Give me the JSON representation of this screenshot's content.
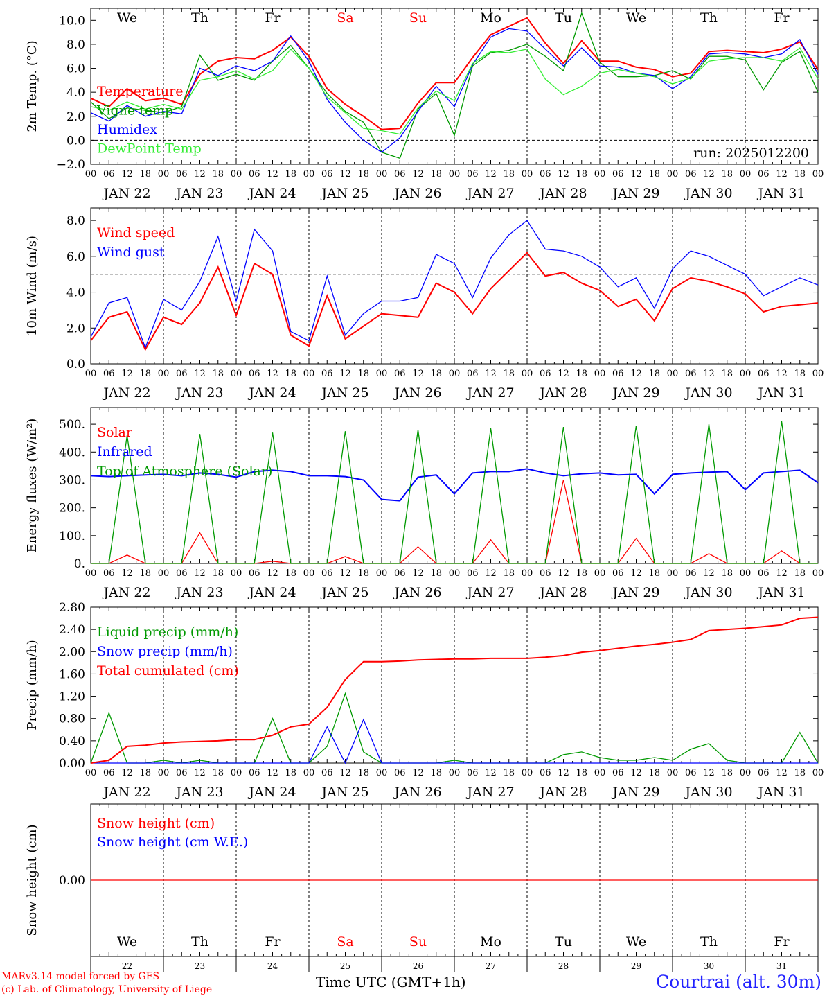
{
  "footer": {
    "credit_line1": "MARv3.14 model forced by GFS",
    "credit_line2": "(c) Lab. of Climatology, University of Liege",
    "x_title": "Time UTC (GMT+1h)",
    "station": "Courtrai (alt. 30m)"
  },
  "colors": {
    "red": "#ff0000",
    "green": "#009900",
    "blue": "#0000ff",
    "lightgreen": "#33ee33",
    "weekend": "#ff0000"
  },
  "chart_data": [
    {
      "id": "temperature",
      "type": "line",
      "ylabel": "2m Temp. (°C)",
      "ylim": [
        -2,
        11
      ],
      "yticks": [
        "−2.0",
        "0.0",
        "2.0",
        "4.0",
        "6.0",
        "8.0",
        "10.0"
      ],
      "ytick_values": [
        -2,
        0,
        2,
        4,
        6,
        8,
        10
      ],
      "reference_line": 0,
      "annotation": "run: 2025012200",
      "days": [
        "We",
        "Th",
        "Fr",
        "Sa",
        "Su",
        "Mo",
        "Tu",
        "We",
        "Th",
        "Fr"
      ],
      "x_hours": [
        0,
        6,
        12,
        18,
        24,
        30,
        36,
        42,
        48,
        54,
        60,
        66,
        72,
        78,
        84,
        90,
        96,
        102,
        108,
        114,
        120,
        126,
        132,
        138,
        144,
        150,
        156,
        162,
        168,
        174,
        180,
        186,
        192,
        198,
        204,
        210,
        216,
        222,
        228,
        234,
        240
      ],
      "series": [
        {
          "name": "Temperature",
          "color": "red",
          "values": [
            3.5,
            2.8,
            4.3,
            3.3,
            3.5,
            3.0,
            5.5,
            6.6,
            6.9,
            6.8,
            7.5,
            8.6,
            7.0,
            4.3,
            3.0,
            2.0,
            0.9,
            1.0,
            3.1,
            4.8,
            4.8,
            6.9,
            8.8,
            9.5,
            10.2,
            8.1,
            6.4,
            8.3,
            6.6,
            6.6,
            6.1,
            5.9,
            5.3,
            5.6,
            7.4,
            7.5,
            7.4,
            7.3,
            7.6,
            8.2,
            5.9
          ]
        },
        {
          "name": "Vigne temp",
          "color": "green",
          "values": [
            3.2,
            1.8,
            2.7,
            2.5,
            2.3,
            2.8,
            7.1,
            5.0,
            5.5,
            5.0,
            6.6,
            7.9,
            6.0,
            3.9,
            2.4,
            1.5,
            -1.0,
            -1.5,
            2.6,
            3.9,
            0.4,
            6.2,
            7.3,
            7.5,
            8.0,
            7.0,
            5.8,
            10.6,
            6.5,
            5.3,
            5.3,
            5.4,
            5.8,
            5.1,
            7.0,
            7.0,
            6.7,
            4.2,
            6.5,
            7.4,
            4.0
          ]
        },
        {
          "name": "Humidex",
          "color": "blue",
          "values": [
            2.3,
            1.6,
            2.9,
            2.0,
            2.4,
            2.2,
            6.0,
            5.4,
            6.2,
            5.8,
            6.6,
            8.7,
            6.6,
            3.4,
            1.5,
            0.0,
            -1.0,
            0.2,
            2.4,
            4.5,
            2.8,
            6.3,
            8.6,
            9.3,
            9.1,
            7.6,
            6.2,
            7.7,
            6.2,
            6.1,
            5.6,
            5.4,
            4.3,
            5.3,
            7.2,
            7.3,
            7.2,
            6.9,
            7.2,
            8.4,
            5.5
          ]
        },
        {
          "name": "DewPoint Temp",
          "color": "lightgreen",
          "values": [
            2.8,
            2.5,
            3.2,
            2.6,
            3.0,
            2.6,
            5.0,
            5.3,
            5.8,
            5.1,
            5.8,
            7.6,
            6.0,
            3.6,
            2.3,
            1.0,
            0.8,
            0.5,
            2.7,
            4.1,
            3.3,
            6.4,
            7.4,
            7.3,
            7.6,
            5.1,
            3.8,
            4.5,
            5.6,
            5.9,
            5.6,
            5.3,
            4.7,
            5.2,
            6.6,
            6.8,
            6.9,
            6.9,
            6.6,
            7.7,
            5.1
          ]
        }
      ]
    },
    {
      "id": "wind",
      "type": "line",
      "ylabel": "10m Wind (m/s)",
      "ylim": [
        0,
        8.7
      ],
      "yticks": [
        "0.0",
        "2.0",
        "4.0",
        "6.0",
        "8.0"
      ],
      "ytick_values": [
        0,
        2,
        4,
        6,
        8
      ],
      "reference_line": 5,
      "x_hours": [
        0,
        6,
        12,
        18,
        24,
        30,
        36,
        42,
        48,
        54,
        60,
        66,
        72,
        78,
        84,
        90,
        96,
        102,
        108,
        114,
        120,
        126,
        132,
        138,
        144,
        150,
        156,
        162,
        168,
        174,
        180,
        186,
        192,
        198,
        204,
        210,
        216,
        222,
        228,
        234,
        240
      ],
      "series": [
        {
          "name": "Wind speed",
          "color": "red",
          "values": [
            1.3,
            2.6,
            2.9,
            0.8,
            2.6,
            2.2,
            3.4,
            5.4,
            2.7,
            5.6,
            5.0,
            1.6,
            1.0,
            3.8,
            1.4,
            2.1,
            2.8,
            2.7,
            2.6,
            4.5,
            4.0,
            2.8,
            4.2,
            5.2,
            6.2,
            4.9,
            5.1,
            4.5,
            4.1,
            3.2,
            3.6,
            2.4,
            4.2,
            4.8,
            4.6,
            4.3,
            3.9,
            2.9,
            3.2,
            3.3,
            3.4
          ]
        },
        {
          "name": "Wind gust",
          "color": "blue",
          "values": [
            1.5,
            3.4,
            3.7,
            0.9,
            3.6,
            3.0,
            4.6,
            7.1,
            3.5,
            7.5,
            6.3,
            1.8,
            1.3,
            4.9,
            1.6,
            2.8,
            3.5,
            3.5,
            3.7,
            6.1,
            5.6,
            3.7,
            5.9,
            7.2,
            8.0,
            6.4,
            6.3,
            6.0,
            5.4,
            4.3,
            4.8,
            3.1,
            5.3,
            6.3,
            6.0,
            5.5,
            5.0,
            3.8,
            4.3,
            4.8,
            4.4
          ]
        }
      ]
    },
    {
      "id": "energy",
      "type": "line",
      "ylabel": "Energy fluxes (W/m²)",
      "ylim": [
        0,
        560
      ],
      "yticks": [
        "0.",
        "100.",
        "200.",
        "300.",
        "400.",
        "500."
      ],
      "ytick_values": [
        0,
        100,
        200,
        300,
        400,
        500
      ],
      "x_hours": [
        0,
        6,
        12,
        18,
        24,
        30,
        36,
        42,
        48,
        54,
        60,
        66,
        72,
        78,
        84,
        90,
        96,
        102,
        108,
        114,
        120,
        126,
        132,
        138,
        144,
        150,
        156,
        162,
        168,
        174,
        180,
        186,
        192,
        198,
        204,
        210,
        216,
        222,
        228,
        234,
        240
      ],
      "series": [
        {
          "name": "Solar",
          "color": "red",
          "values": [
            0,
            0,
            30,
            0,
            0,
            0,
            110,
            0,
            0,
            0,
            8,
            0,
            0,
            0,
            25,
            0,
            0,
            0,
            60,
            0,
            0,
            0,
            85,
            0,
            0,
            0,
            300,
            0,
            0,
            0,
            90,
            0,
            0,
            0,
            35,
            0,
            0,
            0,
            45,
            0,
            0
          ]
        },
        {
          "name": "Infrared",
          "color": "blue",
          "values": [
            315,
            312,
            315,
            318,
            320,
            315,
            325,
            320,
            310,
            330,
            335,
            330,
            315,
            315,
            312,
            300,
            230,
            225,
            310,
            318,
            250,
            325,
            330,
            330,
            340,
            325,
            315,
            322,
            325,
            318,
            320,
            250,
            320,
            325,
            328,
            330,
            265,
            325,
            330,
            335,
            290
          ]
        },
        {
          "name": "Top of Atmosphere (Solar)",
          "color": "green",
          "values": [
            0,
            0,
            460,
            0,
            0,
            0,
            465,
            0,
            0,
            0,
            470,
            0,
            0,
            0,
            475,
            0,
            0,
            0,
            480,
            0,
            0,
            0,
            485,
            0,
            0,
            0,
            490,
            0,
            0,
            0,
            495,
            0,
            0,
            0,
            500,
            0,
            0,
            0,
            510,
            0,
            0
          ]
        }
      ]
    },
    {
      "id": "precip",
      "type": "line",
      "ylabel": "Precip (mm/h)",
      "ylim": [
        0,
        2.8
      ],
      "yticks": [
        "0.00",
        "0.40",
        "0.80",
        "1.20",
        "1.60",
        "2.00",
        "2.40",
        "2.80"
      ],
      "ytick_values": [
        0,
        0.4,
        0.8,
        1.2,
        1.6,
        2.0,
        2.4,
        2.8
      ],
      "x_hours": [
        0,
        6,
        12,
        18,
        24,
        30,
        36,
        42,
        48,
        54,
        60,
        66,
        72,
        78,
        84,
        90,
        96,
        102,
        108,
        114,
        120,
        126,
        132,
        138,
        144,
        150,
        156,
        162,
        168,
        174,
        180,
        186,
        192,
        198,
        204,
        210,
        216,
        222,
        228,
        234,
        240
      ],
      "series": [
        {
          "name": "Liquid precip (mm/h)",
          "color": "green",
          "values": [
            0,
            0.9,
            0,
            0,
            0.05,
            0,
            0.05,
            0,
            0,
            0,
            0.8,
            0,
            0,
            0.3,
            1.25,
            0.2,
            0,
            0,
            0,
            0,
            0.05,
            0,
            0,
            0,
            0,
            0,
            0.15,
            0.2,
            0.1,
            0.05,
            0.05,
            0.1,
            0.05,
            0.25,
            0.35,
            0.05,
            0,
            0,
            0,
            0.55,
            0
          ]
        },
        {
          "name": "Snow precip (mm/h)",
          "color": "blue",
          "values": [
            0,
            0,
            0,
            0,
            0,
            0,
            0,
            0,
            0,
            0,
            0,
            0,
            0,
            0.65,
            0,
            0.78,
            0,
            0,
            0,
            0,
            0,
            0,
            0,
            0,
            0,
            0,
            0,
            0,
            0,
            0,
            0,
            0,
            0,
            0,
            0,
            0,
            0,
            0,
            0,
            0,
            0
          ]
        },
        {
          "name": "Total cumulated (cm)",
          "color": "red",
          "values": [
            0,
            0.05,
            0.3,
            0.32,
            0.36,
            0.38,
            0.39,
            0.4,
            0.42,
            0.42,
            0.5,
            0.65,
            0.7,
            1.0,
            1.5,
            1.82,
            1.82,
            1.83,
            1.85,
            1.86,
            1.87,
            1.87,
            1.88,
            1.88,
            1.88,
            1.9,
            1.93,
            1.99,
            2.02,
            2.06,
            2.1,
            2.13,
            2.17,
            2.22,
            2.38,
            2.4,
            2.42,
            2.45,
            2.48,
            2.6,
            2.62
          ]
        }
      ]
    },
    {
      "id": "snow",
      "type": "line",
      "ylabel": "Snow height (cm)",
      "ylim": [
        -1,
        1
      ],
      "yticks": [
        "0.00"
      ],
      "ytick_values": [
        0
      ],
      "x_hours": [
        0,
        240
      ],
      "series": [
        {
          "name": "Snow height (cm)",
          "color": "red",
          "values": [
            0,
            0
          ]
        },
        {
          "name": "Snow height (cm W.E.)",
          "color": "blue",
          "values": []
        }
      ],
      "days": [
        "We",
        "Th",
        "Fr",
        "Sa",
        "Su",
        "Mo",
        "Tu",
        "We",
        "Th",
        "Fr"
      ],
      "day_numbers": [
        "22",
        "23",
        "24",
        "25",
        "26",
        "27",
        "28",
        "29",
        "30",
        "31"
      ]
    }
  ],
  "x_axis": {
    "hour_labels": [
      "00",
      "06",
      "12",
      "18"
    ],
    "final_label": "00",
    "date_labels": [
      "JAN 22",
      "JAN 23",
      "JAN 24",
      "JAN 25",
      "JAN 26",
      "JAN 27",
      "JAN 28",
      "JAN 29",
      "JAN 30",
      "JAN 31"
    ],
    "weekend_days": [
      "Sa",
      "Su"
    ],
    "reference_line_color": "#000000"
  }
}
